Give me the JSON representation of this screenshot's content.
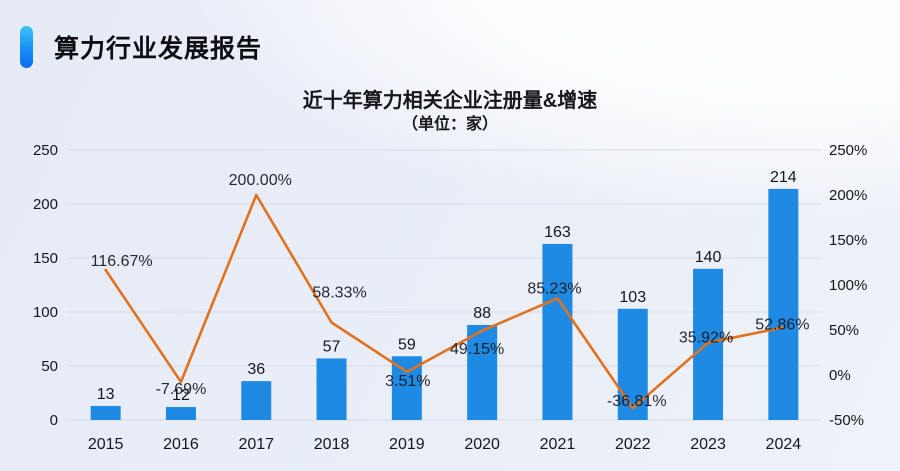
{
  "header": {
    "title": "算力行业发展报告"
  },
  "chart_data": {
    "type": "bar",
    "combo": "bar+line",
    "title": "近十年算力相关企业注册量&增速",
    "subtitle": "（单位：家）",
    "categories": [
      "2015",
      "2016",
      "2017",
      "2018",
      "2019",
      "2020",
      "2021",
      "2022",
      "2023",
      "2024"
    ],
    "series": [
      {
        "name": "注册量",
        "type": "bar",
        "color": "#1f8ae4",
        "values": [
          13,
          12,
          36,
          57,
          59,
          88,
          163,
          103,
          140,
          214
        ],
        "axis": "left"
      },
      {
        "name": "增速",
        "type": "line",
        "color": "#e0711f",
        "label_color": "#c4713f",
        "values": [
          116.67,
          -7.69,
          200.0,
          58.33,
          3.51,
          49.15,
          85.23,
          -36.81,
          35.92,
          52.86
        ],
        "labels": [
          "116.67%",
          "-7.69%",
          "200.00%",
          "58.33%",
          "3.51%",
          "49.15%",
          "85.23%",
          "-36.81%",
          "35.92%",
          "52.86%"
        ],
        "axis": "right"
      }
    ],
    "left_axis": {
      "min": 0,
      "max": 250,
      "step": 50,
      "ticks": [
        0,
        50,
        100,
        150,
        200,
        250
      ]
    },
    "right_axis": {
      "min": -50,
      "max": 250,
      "step": 50,
      "tick_values": [
        -50,
        0,
        50,
        100,
        150,
        200,
        250
      ],
      "ticks": [
        "-50%",
        "0%",
        "50%",
        "100%",
        "150%",
        "200%",
        "250%"
      ]
    },
    "grid": true,
    "legend_position": "none",
    "gridline_color": "#d7dbe4"
  }
}
